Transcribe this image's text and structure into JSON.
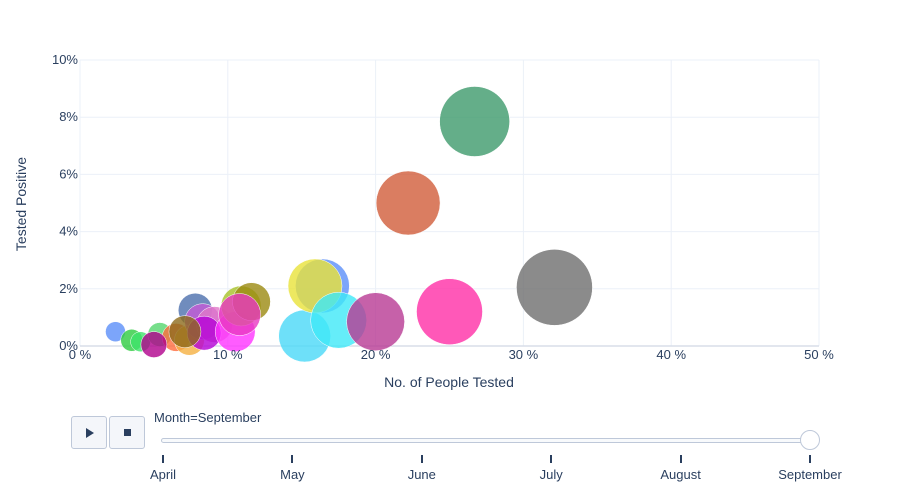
{
  "chart_data": {
    "type": "scatter",
    "title": "",
    "xlabel": "No. of People Tested",
    "ylabel": "Tested Positive",
    "xlim": [
      0,
      50
    ],
    "ylim": [
      0,
      10
    ],
    "x_ticks": [
      "0 %",
      "10 %",
      "20 %",
      "30 %",
      "40 %",
      "50 %"
    ],
    "y_ticks": [
      "0%",
      "2%",
      "4%",
      "6%",
      "8%",
      "10%"
    ],
    "grid": true,
    "bubbles": [
      {
        "x": 2.4,
        "y": 0.5,
        "size": 10,
        "color": "#5b8ff9"
      },
      {
        "x": 3.5,
        "y": 0.2,
        "size": 11,
        "color": "#2ecc40"
      },
      {
        "x": 4.1,
        "y": 0.15,
        "size": 10,
        "color": "#3fe36b"
      },
      {
        "x": 5.4,
        "y": 0.4,
        "size": 12,
        "color": "#55d66e"
      },
      {
        "x": 6.5,
        "y": 0.3,
        "size": 14,
        "color": "#ff6b3d"
      },
      {
        "x": 5.0,
        "y": 0.05,
        "size": 13,
        "color": "#b0008c"
      },
      {
        "x": 7.4,
        "y": 0.2,
        "size": 15,
        "color": "#f5b041"
      },
      {
        "x": 7.8,
        "y": 1.25,
        "size": 17,
        "color": "#4c6fad"
      },
      {
        "x": 8.3,
        "y": 0.85,
        "size": 18,
        "color": "#c45ad6"
      },
      {
        "x": 9.1,
        "y": 0.75,
        "size": 18,
        "color": "#e078c8"
      },
      {
        "x": 8.4,
        "y": 0.45,
        "size": 17,
        "color": "#b400d6"
      },
      {
        "x": 7.1,
        "y": 0.5,
        "size": 16,
        "color": "#8c6a1c"
      },
      {
        "x": 10.5,
        "y": 0.5,
        "size": 20,
        "color": "#ff33ff"
      },
      {
        "x": 10.9,
        "y": 1.4,
        "size": 20,
        "color": "#a7c227"
      },
      {
        "x": 11.6,
        "y": 1.55,
        "size": 19,
        "color": "#9b8a10"
      },
      {
        "x": 10.8,
        "y": 1.1,
        "size": 21,
        "color": "#e838c2"
      },
      {
        "x": 15.2,
        "y": 0.35,
        "size": 26,
        "color": "#4ad8f7"
      },
      {
        "x": 16.4,
        "y": 2.1,
        "size": 27,
        "color": "#5b8ff9"
      },
      {
        "x": 15.9,
        "y": 2.1,
        "size": 27,
        "color": "#e8e23a"
      },
      {
        "x": 17.5,
        "y": 0.9,
        "size": 28,
        "color": "#3ee8f7"
      },
      {
        "x": 20.0,
        "y": 0.85,
        "size": 29,
        "color": "#b83a94"
      },
      {
        "x": 22.2,
        "y": 5.0,
        "size": 32,
        "color": "#d15c3a"
      },
      {
        "x": 25.0,
        "y": 1.2,
        "size": 33,
        "color": "#ff2ea6"
      },
      {
        "x": 26.7,
        "y": 7.85,
        "size": 35,
        "color": "#3d9a6b"
      },
      {
        "x": 32.1,
        "y": 2.05,
        "size": 38,
        "color": "#6e6e6e"
      }
    ]
  },
  "slider": {
    "current_label": "Month=September",
    "steps": [
      "April",
      "May",
      "June",
      "July",
      "August",
      "September"
    ],
    "active_index": 5
  },
  "controls": {
    "play_icon": "play-icon",
    "stop_icon": "stop-icon"
  }
}
